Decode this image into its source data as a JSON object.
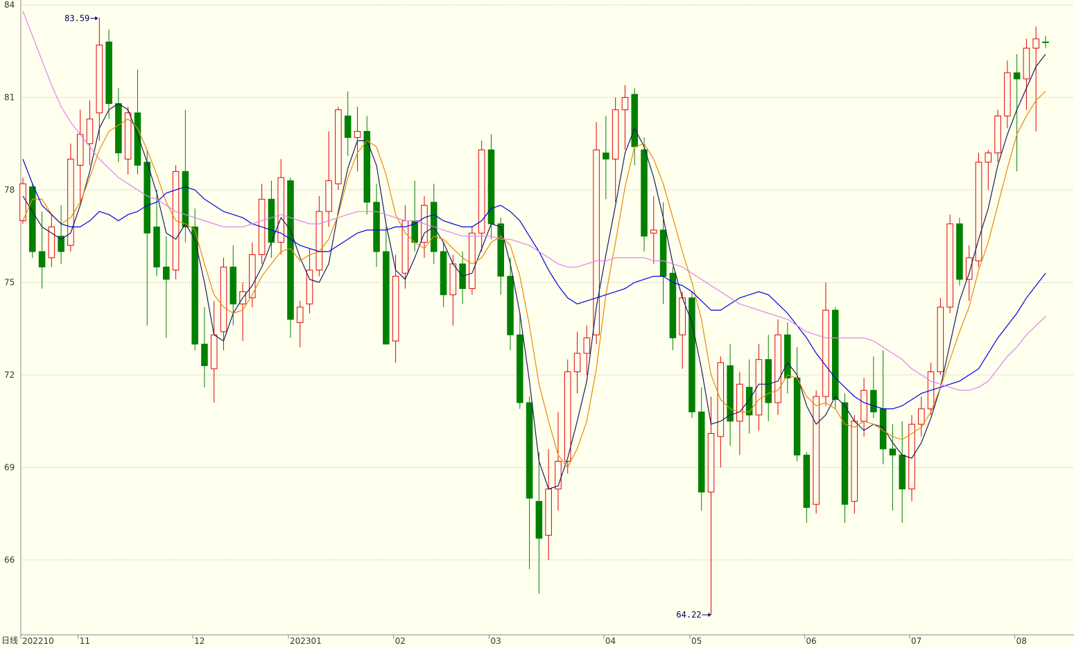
{
  "chart_data": {
    "type": "candlestick",
    "period_label": "日线",
    "categories": [
      "202210",
      null,
      null,
      null,
      null,
      null,
      "11",
      null,
      null,
      null,
      null,
      null,
      null,
      null,
      null,
      null,
      null,
      null,
      "12",
      null,
      null,
      null,
      null,
      null,
      null,
      null,
      null,
      null,
      "202301",
      null,
      null,
      null,
      null,
      null,
      null,
      null,
      null,
      null,
      null,
      "02",
      null,
      null,
      null,
      null,
      null,
      null,
      null,
      null,
      null,
      "03",
      null,
      null,
      null,
      null,
      null,
      null,
      null,
      null,
      null,
      null,
      null,
      "04",
      null,
      null,
      null,
      null,
      null,
      null,
      null,
      null,
      "05",
      null,
      null,
      null,
      null,
      null,
      null,
      null,
      null,
      null,
      null,
      null,
      "06",
      null,
      null,
      null,
      null,
      null,
      null,
      null,
      null,
      null,
      null,
      "07",
      null,
      null,
      null,
      null,
      null,
      null,
      null,
      null,
      null,
      null,
      "08",
      null,
      null,
      null
    ],
    "open": [
      77.0,
      78.1,
      76.0,
      75.8,
      76.5,
      76.2,
      78.8,
      79.5,
      80.5,
      82.8,
      80.8,
      79.0,
      80.5,
      78.9,
      76.8,
      75.5,
      75.4,
      78.6,
      76.8,
      73.0,
      72.2,
      73.4,
      75.5,
      74.3,
      74.5,
      75.9,
      77.7,
      76.3,
      78.3,
      73.7,
      74.3,
      75.4,
      77.3,
      78.2,
      80.4,
      79.7,
      79.9,
      77.6,
      76.0,
      73.1,
      75.3,
      77.0,
      76.3,
      77.6,
      76.0,
      74.6,
      75.6,
      74.8,
      76.6,
      79.3,
      76.9,
      75.2,
      73.3,
      71.1,
      67.9,
      66.8,
      68.3,
      69.2,
      72.1,
      72.7,
      73.3,
      79.2,
      79.0,
      80.6,
      81.1,
      79.3,
      76.6,
      76.7,
      75.3,
      73.3,
      74.5,
      70.8,
      68.2,
      70.0,
      72.3,
      70.5,
      71.6,
      70.7,
      72.5,
      71.1,
      73.3,
      71.9,
      69.4,
      67.8,
      71.3,
      74.1,
      71.1,
      67.9,
      70.5,
      71.5,
      70.9,
      69.6,
      69.4,
      68.3,
      70.4,
      70.9,
      72.1,
      74.2,
      76.9,
      75.1,
      75.7,
      78.9,
      79.2,
      80.4,
      81.8,
      81.6,
      82.6,
      82.8
    ],
    "high": [
      78.4,
      78.2,
      77.3,
      77.2,
      77.5,
      79.5,
      80.6,
      80.9,
      83.59,
      83.2,
      81.3,
      80.7,
      81.9,
      79.3,
      78.0,
      76.5,
      78.8,
      80.6,
      77.4,
      74.2,
      74.4,
      75.8,
      76.2,
      75.0,
      76.3,
      78.2,
      78.3,
      79.0,
      78.4,
      74.4,
      76.1,
      77.8,
      79.9,
      80.7,
      81.2,
      80.7,
      80.4,
      78.2,
      76.8,
      75.9,
      77.5,
      78.3,
      77.8,
      78.2,
      76.3,
      75.9,
      76.0,
      76.8,
      79.6,
      79.8,
      77.1,
      75.8,
      74.0,
      71.3,
      69.5,
      69.6,
      70.8,
      72.5,
      73.4,
      73.6,
      80.2,
      80.4,
      81.0,
      81.4,
      81.3,
      79.7,
      77.8,
      77.6,
      75.5,
      74.7,
      74.7,
      71.6,
      71.3,
      72.6,
      73.0,
      72.1,
      72.5,
      73.0,
      73.3,
      73.8,
      73.7,
      72.9,
      69.5,
      71.5,
      75.0,
      74.2,
      71.4,
      70.7,
      71.9,
      72.6,
      72.8,
      70.4,
      70.5,
      70.7,
      71.3,
      72.4,
      74.5,
      77.2,
      77.1,
      76.2,
      79.2,
      79.3,
      80.6,
      82.2,
      82.4,
      82.9,
      83.3,
      83.0
    ],
    "low": [
      76.9,
      75.8,
      74.8,
      75.5,
      75.6,
      76.0,
      77.6,
      78.8,
      79.6,
      80.3,
      78.9,
      78.5,
      78.5,
      73.6,
      75.2,
      73.2,
      75.1,
      76.3,
      72.8,
      71.6,
      71.1,
      72.8,
      73.6,
      73.1,
      74.2,
      75.6,
      75.8,
      75.9,
      73.2,
      72.9,
      74.0,
      75.2,
      76.8,
      78.0,
      79.1,
      78.6,
      77.2,
      75.5,
      73.0,
      72.4,
      74.8,
      76.0,
      75.8,
      75.6,
      74.2,
      73.6,
      74.3,
      74.6,
      76.0,
      76.4,
      74.6,
      72.8,
      70.9,
      65.7,
      64.9,
      66.0,
      67.6,
      68.8,
      71.4,
      72.0,
      73.0,
      77.7,
      77.6,
      79.3,
      78.8,
      76.0,
      75.6,
      74.3,
      72.8,
      72.2,
      70.6,
      67.6,
      64.22,
      69.0,
      69.7,
      69.4,
      70.1,
      70.2,
      70.5,
      70.7,
      71.4,
      69.2,
      67.2,
      67.5,
      71.0,
      70.9,
      67.2,
      67.5,
      70.0,
      70.6,
      69.1,
      67.6,
      67.2,
      67.9,
      70.0,
      70.7,
      72.0,
      74.0,
      74.9,
      74.4,
      75.5,
      78.0,
      78.9,
      80.0,
      78.6,
      80.6,
      79.9,
      82.6
    ],
    "close": [
      78.2,
      76.0,
      75.5,
      76.8,
      76.0,
      79.0,
      79.8,
      80.3,
      82.7,
      80.8,
      79.2,
      80.5,
      78.8,
      76.6,
      75.5,
      75.1,
      78.6,
      76.8,
      73.0,
      72.3,
      73.3,
      75.5,
      74.3,
      74.7,
      75.9,
      77.7,
      76.3,
      78.4,
      73.8,
      74.2,
      75.4,
      77.3,
      78.3,
      80.6,
      79.7,
      79.9,
      77.6,
      76.0,
      73.0,
      75.2,
      77.0,
      76.3,
      77.5,
      76.0,
      74.6,
      75.6,
      74.8,
      76.6,
      79.3,
      76.9,
      75.2,
      73.3,
      71.1,
      68.0,
      66.7,
      68.3,
      69.2,
      72.1,
      72.7,
      73.2,
      79.3,
      79.0,
      80.6,
      81.0,
      79.4,
      76.5,
      76.7,
      75.2,
      73.2,
      74.5,
      70.8,
      68.2,
      70.1,
      72.4,
      70.5,
      71.7,
      70.7,
      72.5,
      71.1,
      73.3,
      71.9,
      69.4,
      67.7,
      71.3,
      74.1,
      71.2,
      67.8,
      70.5,
      71.5,
      70.8,
      69.6,
      69.4,
      68.3,
      70.4,
      70.9,
      72.1,
      74.2,
      76.9,
      75.1,
      75.8,
      78.9,
      79.2,
      80.4,
      81.8,
      81.6,
      82.6,
      82.9,
      82.8
    ],
    "up_color": "#e00000",
    "down_color": "#008000",
    "series": [
      {
        "color": "#1c1c5c",
        "values": [
          77.8,
          77.3,
          76.8,
          76.6,
          76.4,
          76.6,
          77.5,
          78.6,
          80.0,
          80.6,
          80.8,
          80.6,
          79.8,
          78.9,
          77.9,
          76.6,
          76.4,
          76.9,
          76.4,
          75.0,
          73.3,
          73.1,
          74.0,
          74.5,
          74.9,
          75.5,
          76.3,
          77.1,
          76.7,
          75.8,
          75.1,
          75.0,
          75.6,
          77.3,
          78.7,
          79.6,
          79.6,
          78.8,
          76.9,
          75.4,
          75.1,
          75.8,
          76.6,
          76.8,
          76.3,
          75.6,
          75.2,
          75.3,
          76.1,
          76.9,
          76.8,
          75.6,
          74.0,
          71.8,
          69.2,
          68.3,
          68.4,
          69.3,
          70.5,
          71.8,
          74.2,
          75.9,
          77.5,
          79.2,
          80.0,
          79.4,
          78.4,
          77.1,
          75.6,
          74.5,
          73.7,
          72.2,
          70.4,
          70.5,
          70.7,
          70.8,
          71.2,
          71.7,
          71.7,
          71.8,
          72.4,
          72.0,
          71.0,
          70.4,
          70.7,
          71.3,
          71.0,
          70.5,
          70.2,
          70.4,
          70.3,
          69.8,
          69.4,
          69.3,
          69.8,
          70.6,
          71.6,
          73.0,
          74.4,
          75.3,
          76.4,
          77.4,
          78.8,
          79.8,
          80.6,
          81.3,
          82.0,
          82.4
        ]
      },
      {
        "color": "#e88a00",
        "values": [
          77.0,
          77.7,
          77.7,
          77.2,
          76.9,
          77.1,
          77.6,
          78.4,
          79.3,
          79.9,
          80.1,
          80.3,
          80.0,
          79.3,
          78.5,
          77.6,
          77.0,
          76.9,
          76.7,
          75.6,
          74.6,
          74.2,
          74.0,
          74.1,
          74.6,
          75.2,
          75.6,
          76.0,
          76.1,
          75.7,
          75.9,
          76.0,
          76.4,
          77.2,
          78.4,
          79.2,
          79.6,
          79.4,
          78.5,
          77.2,
          76.6,
          76.3,
          76.1,
          76.5,
          76.4,
          76.1,
          75.8,
          75.6,
          75.8,
          76.3,
          76.5,
          76.2,
          75.2,
          73.6,
          71.7,
          70.5,
          69.4,
          69.0,
          69.6,
          70.5,
          72.2,
          74.6,
          76.3,
          78.1,
          79.4,
          79.5,
          79.0,
          78.2,
          77.1,
          76.0,
          75.0,
          73.8,
          72.0,
          71.2,
          70.9,
          70.8,
          70.8,
          71.2,
          71.4,
          71.5,
          72.0,
          71.9,
          71.3,
          71.0,
          71.1,
          70.9,
          70.4,
          70.3,
          70.5,
          70.4,
          70.2,
          70.0,
          69.9,
          70.1,
          70.3,
          70.8,
          71.6,
          72.5,
          73.4,
          74.2,
          75.4,
          76.3,
          77.5,
          78.7,
          79.8,
          80.4,
          80.9,
          81.2
        ]
      },
      {
        "color": "#0000e0",
        "values": [
          79.0,
          78.2,
          77.5,
          77.2,
          76.9,
          76.8,
          76.8,
          77.0,
          77.3,
          77.2,
          77.0,
          77.2,
          77.3,
          77.5,
          77.6,
          77.9,
          78.0,
          78.1,
          78.0,
          77.7,
          77.5,
          77.3,
          77.2,
          77.1,
          76.9,
          76.8,
          76.7,
          76.6,
          76.4,
          76.2,
          76.1,
          76.0,
          76.0,
          76.2,
          76.4,
          76.6,
          76.7,
          76.7,
          76.7,
          76.8,
          76.8,
          76.9,
          77.1,
          77.2,
          77.0,
          76.9,
          76.8,
          76.8,
          77.0,
          77.4,
          77.5,
          77.3,
          77.0,
          76.5,
          76.0,
          75.4,
          74.9,
          74.5,
          74.3,
          74.4,
          74.5,
          74.6,
          74.7,
          74.8,
          75.0,
          75.1,
          75.2,
          75.2,
          75.0,
          74.9,
          74.7,
          74.4,
          74.1,
          74.1,
          74.3,
          74.5,
          74.6,
          74.7,
          74.6,
          74.3,
          74.0,
          73.6,
          73.2,
          72.7,
          72.3,
          71.9,
          71.6,
          71.3,
          71.1,
          71.0,
          70.9,
          70.9,
          71.0,
          71.2,
          71.4,
          71.5,
          71.6,
          71.7,
          71.8,
          72.0,
          72.2,
          72.7,
          73.2,
          73.6,
          74.0,
          74.5,
          74.9,
          75.3
        ]
      },
      {
        "color": "#e080f0",
        "values": [
          83.8,
          83.0,
          82.2,
          81.4,
          80.7,
          80.2,
          79.8,
          79.4,
          79.0,
          78.7,
          78.4,
          78.2,
          78.0,
          77.8,
          77.7,
          77.5,
          77.3,
          77.2,
          77.1,
          77.0,
          76.9,
          76.8,
          76.8,
          76.8,
          76.9,
          77.0,
          77.1,
          77.2,
          77.1,
          77.0,
          76.9,
          76.9,
          77.0,
          77.1,
          77.2,
          77.3,
          77.3,
          77.3,
          77.2,
          77.1,
          77.0,
          77.0,
          76.9,
          76.8,
          76.7,
          76.6,
          76.5,
          76.5,
          76.5,
          76.5,
          76.4,
          76.4,
          76.3,
          76.2,
          76.0,
          75.8,
          75.6,
          75.5,
          75.5,
          75.6,
          75.7,
          75.7,
          75.8,
          75.8,
          75.8,
          75.8,
          75.7,
          75.7,
          75.6,
          75.5,
          75.3,
          75.1,
          74.9,
          74.7,
          74.5,
          74.3,
          74.2,
          74.1,
          74.0,
          73.9,
          73.8,
          73.6,
          73.4,
          73.3,
          73.2,
          73.2,
          73.2,
          73.2,
          73.2,
          73.1,
          72.9,
          72.7,
          72.5,
          72.2,
          72.0,
          71.8,
          71.7,
          71.6,
          71.5,
          71.5,
          71.6,
          71.8,
          72.2,
          72.6,
          72.9,
          73.3,
          73.6,
          73.9
        ]
      }
    ],
    "ylim": [
      63.57,
      84.16
    ],
    "yticks": [
      66,
      69,
      72,
      75,
      78,
      81,
      84
    ],
    "grid": true
  }
}
